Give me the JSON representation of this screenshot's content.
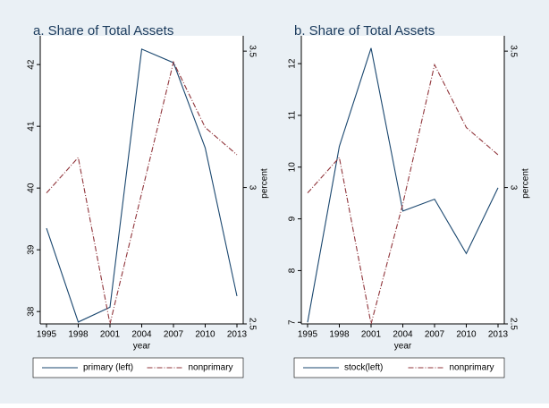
{
  "chart_data": [
    {
      "type": "line",
      "title": "a. Share of Total Assets",
      "xlabel": "year",
      "y2label": "percent",
      "x": [
        1995,
        1998,
        2001,
        2004,
        2007,
        2010,
        2013
      ],
      "xlim": [
        1995,
        2013
      ],
      "xticks": [
        1995,
        1998,
        2001,
        2004,
        2007,
        2010,
        2013
      ],
      "ylim": [
        37.8,
        42.35
      ],
      "yticks": [
        38,
        39,
        40,
        41,
        42
      ],
      "y2lim": [
        2.5,
        3.53
      ],
      "y2ticks": [
        2.5,
        3,
        3.5
      ],
      "series": [
        {
          "name": "primary (left)",
          "color": "#1a476f",
          "dash": false,
          "values": [
            39.35,
            37.83,
            38.07,
            42.25,
            42.03,
            40.65,
            38.25
          ]
        },
        {
          "name": "nonprimary",
          "color": "#90353b",
          "dash": true,
          "axis": "y2",
          "values": [
            2.98,
            3.11,
            2.5,
            2.98,
            3.46,
            3.22,
            3.12
          ]
        }
      ]
    },
    {
      "type": "line",
      "title": "b. Share of Total Assets",
      "xlabel": "year",
      "y2label": "percent",
      "x": [
        1995,
        1998,
        2001,
        2004,
        2007,
        2010,
        2013
      ],
      "xlim": [
        1995,
        2013
      ],
      "xticks": [
        1995,
        1998,
        2001,
        2004,
        2007,
        2010,
        2013
      ],
      "ylim": [
        6.97,
        12.4
      ],
      "yticks": [
        7,
        8,
        9,
        10,
        11,
        12
      ],
      "y2lim": [
        2.5,
        3.53
      ],
      "y2ticks": [
        2.5,
        3,
        3.5
      ],
      "series": [
        {
          "name": "stock(left)",
          "color": "#1a476f",
          "dash": false,
          "values": [
            7.0,
            10.4,
            12.3,
            9.15,
            9.38,
            8.33,
            9.6
          ]
        },
        {
          "name": "nonprimary",
          "color": "#90353b",
          "dash": true,
          "axis": "y2",
          "values": [
            2.98,
            3.11,
            2.5,
            2.94,
            3.45,
            3.22,
            3.12
          ]
        }
      ]
    }
  ]
}
